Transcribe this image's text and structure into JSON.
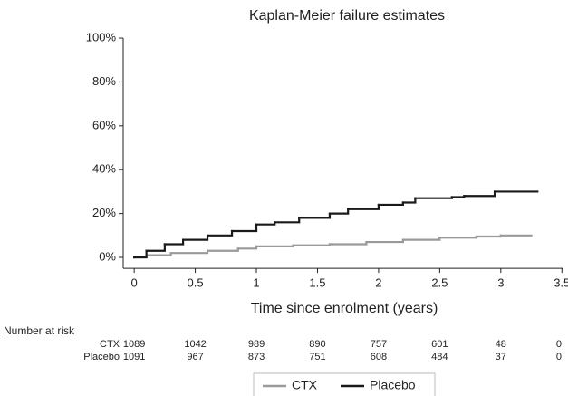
{
  "chart_data": {
    "type": "step",
    "title": "Kaplan-Meier failure estimates",
    "x_label": "Time since enrolment (years)",
    "xlim": [
      -0.09,
      3.55
    ],
    "ylim": [
      -5,
      102
    ],
    "xticks": [
      0,
      0.5,
      1,
      1.5,
      2,
      2.5,
      3,
      3.5
    ],
    "yticks": [
      {
        "value": 0,
        "label": "0%"
      },
      {
        "value": 20,
        "label": "20%"
      },
      {
        "value": 40,
        "label": "40%"
      },
      {
        "value": 60,
        "label": "60%"
      },
      {
        "value": 80,
        "label": "80%"
      },
      {
        "value": 100,
        "label": "100%"
      }
    ],
    "grid": false,
    "legend": "bottom",
    "series": [
      {
        "name": "CTX",
        "color": "#9a9a9a",
        "x": [
          0,
          0.1,
          0.3,
          0.6,
          0.85,
          1.0,
          1.3,
          1.6,
          1.9,
          2.2,
          2.5,
          2.8,
          3.0,
          3.25
        ],
        "values": [
          0,
          1,
          2,
          3,
          4,
          5,
          5.5,
          6,
          7,
          8,
          9,
          9.5,
          10,
          10
        ]
      },
      {
        "name": "Placebo",
        "color": "#1a1a1a",
        "x": [
          0,
          0.1,
          0.25,
          0.4,
          0.6,
          0.8,
          1.0,
          1.15,
          1.35,
          1.6,
          1.75,
          2.0,
          2.2,
          2.3,
          2.6,
          2.7,
          2.95,
          3.3
        ],
        "values": [
          0,
          3,
          6,
          8,
          10,
          12,
          15,
          16,
          18,
          20,
          22,
          24,
          25,
          27,
          27.5,
          28,
          30,
          30
        ]
      }
    ],
    "risk_table": {
      "title": "Number at risk",
      "rows": [
        {
          "name": "CTX",
          "values": [
            1089,
            1042,
            989,
            890,
            757,
            601,
            48,
            0
          ]
        },
        {
          "name": "Placebo",
          "values": [
            1091,
            967,
            873,
            751,
            608,
            484,
            37,
            0
          ]
        }
      ]
    }
  }
}
